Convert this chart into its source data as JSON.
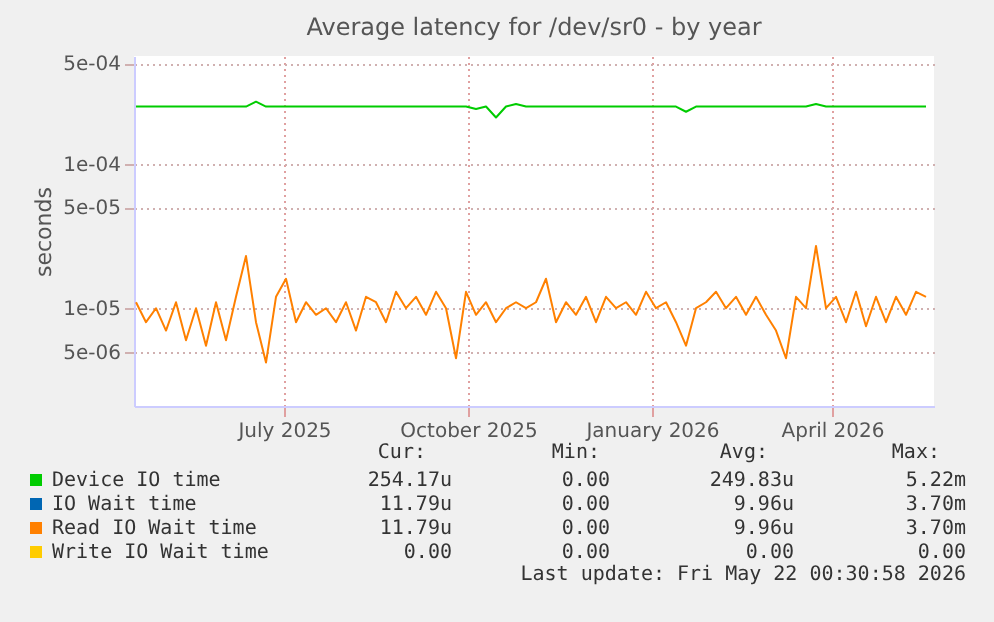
{
  "chart_data": {
    "type": "line",
    "title": "Average latency for /dev/sr0 - by year",
    "ylabel": "seconds",
    "x": [
      "2025-04-18",
      "2025-04-23",
      "2025-04-28",
      "2025-05-03",
      "2025-05-08",
      "2025-05-13",
      "2025-05-18",
      "2025-05-23",
      "2025-05-28",
      "2025-06-02",
      "2025-06-07",
      "2025-06-12",
      "2025-06-17",
      "2025-06-22",
      "2025-06-27",
      "2025-07-02",
      "2025-07-07",
      "2025-07-12",
      "2025-07-17",
      "2025-07-22",
      "2025-07-27",
      "2025-08-01",
      "2025-08-06",
      "2025-08-11",
      "2025-08-16",
      "2025-08-21",
      "2025-08-26",
      "2025-08-31",
      "2025-09-05",
      "2025-09-10",
      "2025-09-15",
      "2025-09-20",
      "2025-09-25",
      "2025-09-30",
      "2025-10-05",
      "2025-10-10",
      "2025-10-15",
      "2025-10-20",
      "2025-10-25",
      "2025-10-30",
      "2025-11-04",
      "2025-11-09",
      "2025-11-14",
      "2025-11-19",
      "2025-11-24",
      "2025-11-29",
      "2025-12-04",
      "2025-12-09",
      "2025-12-14",
      "2025-12-19",
      "2025-12-24",
      "2025-12-29",
      "2026-01-03",
      "2026-01-08",
      "2026-01-13",
      "2026-01-18",
      "2026-01-23",
      "2026-01-28",
      "2026-02-02",
      "2026-02-07",
      "2026-02-12",
      "2026-02-17",
      "2026-02-22",
      "2026-02-27",
      "2026-03-04",
      "2026-03-09",
      "2026-03-14",
      "2026-03-19",
      "2026-03-24",
      "2026-03-29",
      "2026-04-03",
      "2026-04-08",
      "2026-04-13",
      "2026-04-18",
      "2026-04-23",
      "2026-04-28",
      "2026-05-03",
      "2026-05-08",
      "2026-05-13",
      "2026-05-18"
    ],
    "series": [
      {
        "name": "Device IO time",
        "color": "#00cc00",
        "values": [
          0.00025,
          0.00025,
          0.00025,
          0.00025,
          0.00025,
          0.00025,
          0.00025,
          0.00025,
          0.00025,
          0.00025,
          0.00025,
          0.00025,
          0.00027,
          0.00025,
          0.00025,
          0.00025,
          0.00025,
          0.00025,
          0.00025,
          0.00025,
          0.00025,
          0.00025,
          0.00025,
          0.00025,
          0.00025,
          0.00025,
          0.00025,
          0.00025,
          0.00025,
          0.00025,
          0.00025,
          0.00025,
          0.00025,
          0.00025,
          0.00024,
          0.00025,
          0.00021,
          0.00025,
          0.00026,
          0.00025,
          0.00025,
          0.00025,
          0.00025,
          0.00025,
          0.00025,
          0.00025,
          0.00025,
          0.00025,
          0.00025,
          0.00025,
          0.00025,
          0.00025,
          0.00025,
          0.00025,
          0.00025,
          0.00023,
          0.00025,
          0.00025,
          0.00025,
          0.00025,
          0.00025,
          0.00025,
          0.00025,
          0.00025,
          0.00025,
          0.00025,
          0.00025,
          0.00025,
          0.00026,
          0.00025,
          0.00025,
          0.00025,
          0.00025,
          0.00025,
          0.00025,
          0.00025,
          0.00025,
          0.00025,
          0.00025,
          0.00025
        ]
      },
      {
        "name": "IO Wait time",
        "color": "#0066b3",
        "values": [
          null,
          null,
          null,
          null,
          null,
          null,
          null,
          null,
          null,
          null,
          null,
          null,
          null,
          null,
          null,
          null,
          null,
          null,
          null,
          null,
          null,
          null,
          null,
          null,
          null,
          null,
          null,
          null,
          null,
          null,
          null,
          null,
          null,
          null,
          null,
          null,
          null,
          null,
          null,
          null,
          null,
          null,
          null,
          null,
          null,
          null,
          null,
          null,
          null,
          null,
          null,
          null,
          null,
          null,
          null,
          null,
          null,
          null,
          null,
          null,
          null,
          null,
          null,
          null,
          null,
          null,
          null,
          null,
          null,
          null,
          null,
          null,
          null,
          null,
          null,
          null,
          null,
          null,
          null,
          null
        ]
      },
      {
        "name": "Read IO Wait time",
        "color": "#ff8000",
        "values": [
          1.1e-05,
          8e-06,
          1e-05,
          7e-06,
          1.1e-05,
          6e-06,
          1e-05,
          5.5e-06,
          1.1e-05,
          6e-06,
          1.2e-05,
          2.3e-05,
          8e-06,
          4.2e-06,
          1.2e-05,
          1.6e-05,
          8e-06,
          1.1e-05,
          9e-06,
          1e-05,
          8e-06,
          1.1e-05,
          7e-06,
          1.2e-05,
          1.1e-05,
          8e-06,
          1.3e-05,
          1e-05,
          1.2e-05,
          9e-06,
          1.3e-05,
          1e-05,
          4.5e-06,
          1.3e-05,
          9e-06,
          1.1e-05,
          8e-06,
          1e-05,
          1.1e-05,
          1e-05,
          1.1e-05,
          1.6e-05,
          8e-06,
          1.1e-05,
          9e-06,
          1.2e-05,
          8e-06,
          1.2e-05,
          1e-05,
          1.1e-05,
          9e-06,
          1.3e-05,
          1e-05,
          1.1e-05,
          8e-06,
          5.5e-06,
          1e-05,
          1.1e-05,
          1.3e-05,
          1e-05,
          1.2e-05,
          9e-06,
          1.2e-05,
          9e-06,
          7e-06,
          4.5e-06,
          1.2e-05,
          1e-05,
          2.7e-05,
          1e-05,
          1.2e-05,
          8e-06,
          1.3e-05,
          7.5e-06,
          1.2e-05,
          8e-06,
          1.2e-05,
          9e-06,
          1.3e-05,
          1.2e-05
        ]
      },
      {
        "name": "Write IO Wait time",
        "color": "#ffcc00",
        "values": [
          null,
          null,
          null,
          null,
          null,
          null,
          null,
          null,
          null,
          null,
          null,
          null,
          null,
          null,
          null,
          null,
          null,
          null,
          null,
          null,
          null,
          null,
          null,
          null,
          null,
          null,
          null,
          null,
          null,
          null,
          null,
          null,
          null,
          null,
          null,
          null,
          null,
          null,
          null,
          null,
          null,
          null,
          null,
          null,
          null,
          null,
          null,
          null,
          null,
          null,
          null,
          null,
          null,
          null,
          null,
          null,
          null,
          null,
          null,
          null,
          null,
          null,
          null,
          null,
          null,
          null,
          null,
          null,
          null,
          null,
          null,
          null,
          null,
          null,
          null,
          null,
          null,
          null,
          null,
          null
        ]
      }
    ],
    "xlim": [
      "2025-04-17",
      "2026-05-22"
    ],
    "xticks": [
      {
        "value": "2025-07-01",
        "label": "July 2025"
      },
      {
        "value": "2025-10-01",
        "label": "October 2025"
      },
      {
        "value": "2026-01-01",
        "label": "January 2026"
      },
      {
        "value": "2026-04-01",
        "label": "April 2026"
      }
    ],
    "ylim": [
      2.1e-06,
      0.00056
    ],
    "yticks": [
      {
        "value": 5e-06,
        "label": "5e-06"
      },
      {
        "value": 1e-05,
        "label": "1e-05"
      },
      {
        "value": 5e-05,
        "label": "5e-05"
      },
      {
        "value": 0.0001,
        "label": "1e-04"
      },
      {
        "value": 0.0005,
        "label": "5e-04"
      }
    ],
    "log": true,
    "grid": true,
    "legend": "bottom",
    "marker": "none",
    "line_style": "solid",
    "annotations": [
      "Cur: Min: Avg: Max:",
      "254.17u 0.00 249.83u 5.22m",
      "11.79u 0.00 9.96u 3.70m",
      "11.79u 0.00 9.96u 3.70m",
      "0.00 0.00 0.00 0.00",
      "Last update: Fri May 22 00:30:58 2026"
    ]
  }
}
